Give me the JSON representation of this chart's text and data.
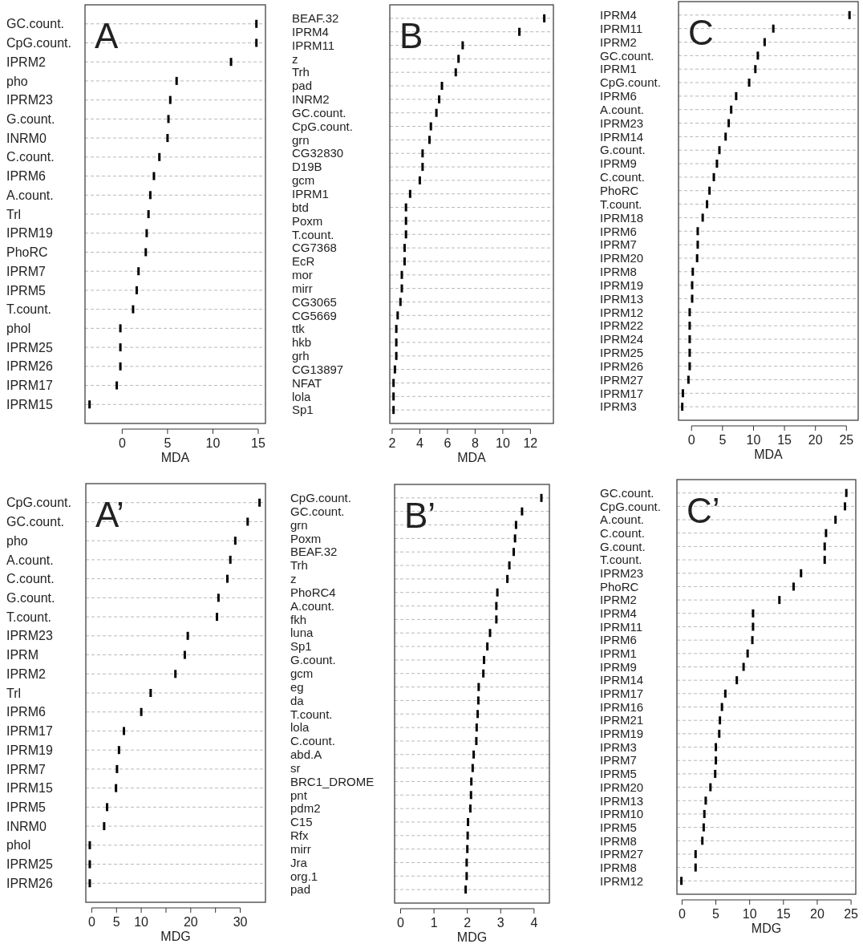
{
  "chart_data": [
    {
      "type": "scatter",
      "orientation": "horizontal",
      "title": "A",
      "xlabel": "MDA",
      "grid": "y",
      "color": "#000000",
      "categories": [
        "GC.count.",
        "CpG.count.",
        "IPRM2",
        "pho",
        "IPRM23",
        "G.count.",
        "INRM0",
        "C.count.",
        "IPRM6",
        "A.count.",
        "Trl",
        "IPRM19",
        "PhoRC",
        "IPRM7",
        "IPRM5",
        "T.count.",
        "phol",
        "IPRM25",
        "IPRM26",
        "IPRM17",
        "IPRM15"
      ],
      "values": [
        14.8,
        14.8,
        12.0,
        6.0,
        5.3,
        5.1,
        5.0,
        4.1,
        3.5,
        3.1,
        2.9,
        2.7,
        2.6,
        1.8,
        1.6,
        1.2,
        -0.2,
        -0.2,
        -0.2,
        -0.6,
        -3.6
      ],
      "xlim": [
        -4.1,
        15.8
      ],
      "xticks": [
        0,
        5,
        10,
        15
      ]
    },
    {
      "type": "scatter",
      "orientation": "horizontal",
      "title": "B",
      "xlabel": "MDA",
      "grid": "y",
      "color": "#000000",
      "categories": [
        "BEAF.32",
        "IPRM4",
        "IPRM11",
        "z",
        "Trh",
        "pad",
        "INRM2",
        "GC.count.",
        "CpG.count.",
        "grn",
        "CG32830",
        "D19B",
        "gcm",
        "IPRM1",
        "btd",
        "Poxm",
        "T.count.",
        "CG7368",
        "EcR",
        "mor",
        "mirr",
        "CG3065",
        "CG5669",
        "ttk",
        "hkb",
        "grh",
        "CG13897",
        "NFAT",
        "lola",
        "Sp1"
      ],
      "values": [
        13.0,
        11.2,
        7.1,
        6.8,
        6.6,
        5.6,
        5.4,
        5.2,
        4.8,
        4.7,
        4.2,
        4.2,
        4.0,
        3.3,
        3.0,
        3.0,
        3.0,
        2.9,
        2.9,
        2.7,
        2.7,
        2.6,
        2.4,
        2.3,
        2.3,
        2.3,
        2.2,
        2.1,
        2.1,
        2.1
      ],
      "xlim": [
        1.83,
        13.66
      ],
      "xticks": [
        2,
        4,
        6,
        8,
        10,
        12
      ]
    },
    {
      "type": "scatter",
      "orientation": "horizontal",
      "title": "C",
      "xlabel": "MDA",
      "grid": "y",
      "color": "#000000",
      "categories": [
        "IPRM4",
        "IPRM11",
        "IPRM2",
        "GC.count.",
        "IPRM1",
        "CpG.count.",
        "IPRM6",
        "A.count.",
        "IPRM23",
        "IPRM14",
        "G.count.",
        "IPRM9",
        "C.count.",
        "PhoRC",
        "T.count.",
        "IPRM18",
        "IPRM6",
        "IPRM7",
        "IPRM20",
        "IPRM8",
        "IPRM19",
        "IPRM13",
        "IPRM12",
        "IPRM22",
        "IPRM24",
        "IPRM25",
        "IPRM26",
        "IPRM27",
        "IPRM17",
        "IPRM3"
      ],
      "values": [
        25.5,
        13.2,
        11.8,
        10.7,
        10.3,
        9.3,
        7.2,
        6.4,
        6.0,
        5.5,
        4.5,
        4.1,
        3.6,
        2.9,
        2.5,
        1.8,
        1.0,
        1.0,
        0.9,
        0.2,
        0.1,
        0.1,
        -0.3,
        -0.3,
        -0.3,
        -0.3,
        -0.3,
        -0.5,
        -1.4,
        -1.5
      ],
      "xlim": [
        -2.1,
        26.9
      ],
      "xticks": [
        0,
        5,
        10,
        15,
        20,
        25
      ]
    },
    {
      "type": "scatter",
      "orientation": "horizontal",
      "title": "A’",
      "xlabel": "MDG",
      "grid": "y",
      "color": "#000000",
      "categories": [
        "CpG.count.",
        "GC.count.",
        "pho",
        "A.count.",
        "C.count.",
        "G.count.",
        "T.count.",
        "IPRM23",
        "IPRM",
        "IPRM2",
        "Trl",
        "IPRM6",
        "IPRM17",
        "IPRM19",
        "IPRM7",
        "IPRM15",
        "IPRM5",
        "INRM0",
        "phol",
        "IPRM25",
        "IPRM26"
      ],
      "values": [
        33.9,
        31.5,
        29.0,
        28.0,
        27.4,
        25.6,
        25.3,
        19.4,
        18.8,
        16.9,
        11.9,
        10.0,
        6.5,
        5.5,
        5.1,
        4.9,
        3.1,
        2.5,
        -0.4,
        -0.4,
        -0.4
      ],
      "xlim": [
        -1.2,
        35.1
      ],
      "xticks": [
        0,
        5,
        10,
        {
          "value": 15,
          "label": null
        },
        20,
        {
          "value": 25,
          "label": null
        },
        30
      ]
    },
    {
      "type": "scatter",
      "orientation": "horizontal",
      "title": "B’",
      "xlabel": "MDG",
      "grid": "y",
      "color": "#000000",
      "categories": [
        "CpG.count.",
        "GC.count.",
        "grn",
        "Poxm",
        "BEAF.32",
        "Trh",
        "z",
        "PhoRC4",
        "A.count.",
        "fkh",
        "luna",
        "Sp1",
        "G.count.",
        "gcm",
        "eg",
        "da",
        "T.count.",
        "lola",
        "C.count.",
        "abd.A",
        "sr",
        "BRC1_DROME",
        "pnt",
        "pdm2",
        "C15",
        "Rfx",
        "mirr",
        "Jra",
        "org.1",
        "pad"
      ],
      "values": [
        4.22,
        3.64,
        3.46,
        3.43,
        3.39,
        3.26,
        3.2,
        2.9,
        2.87,
        2.87,
        2.68,
        2.6,
        2.5,
        2.48,
        2.34,
        2.33,
        2.31,
        2.28,
        2.27,
        2.19,
        2.16,
        2.12,
        2.11,
        2.09,
        2.02,
        2.01,
        2.0,
        1.98,
        1.98,
        1.95
      ],
      "xlim": [
        -0.18,
        4.46
      ],
      "xticks": [
        0,
        1,
        2,
        3,
        4
      ]
    },
    {
      "type": "scatter",
      "orientation": "horizontal",
      "title": "C’",
      "xlabel": "MDG",
      "grid": "y",
      "color": "#000000",
      "categories": [
        "GC.count.",
        "CpG.count.",
        "A.count.",
        "C.count.",
        "G.count.",
        "T.count.",
        "IPRM23",
        "PhoRC",
        "IPRM2",
        "IPRM4",
        "IPRM11",
        "IPRM6",
        "IPRM1",
        "IPRM9",
        "IPRM14",
        "IPRM17",
        "IPRM16",
        "IPRM21",
        "IPRM19",
        "IPRM3",
        "IPRM7",
        "IPRM5",
        "IPRM20",
        "IPRM13",
        "IPRM10",
        "IPRM5",
        "IPRM8",
        "IPRM27",
        "IPRM8",
        "IPRM12"
      ],
      "values": [
        24.3,
        24.1,
        22.7,
        21.3,
        21.1,
        21.1,
        17.6,
        16.5,
        14.4,
        10.5,
        10.5,
        10.4,
        9.7,
        9.1,
        8.1,
        6.4,
        5.9,
        5.6,
        5.5,
        5.0,
        5.0,
        4.9,
        4.2,
        3.5,
        3.3,
        3.2,
        3.0,
        2.0,
        2.0,
        -0.1
      ],
      "xlim": [
        -0.76,
        25.7
      ],
      "xticks": [
        0,
        5,
        10,
        15,
        20,
        25
      ]
    }
  ]
}
